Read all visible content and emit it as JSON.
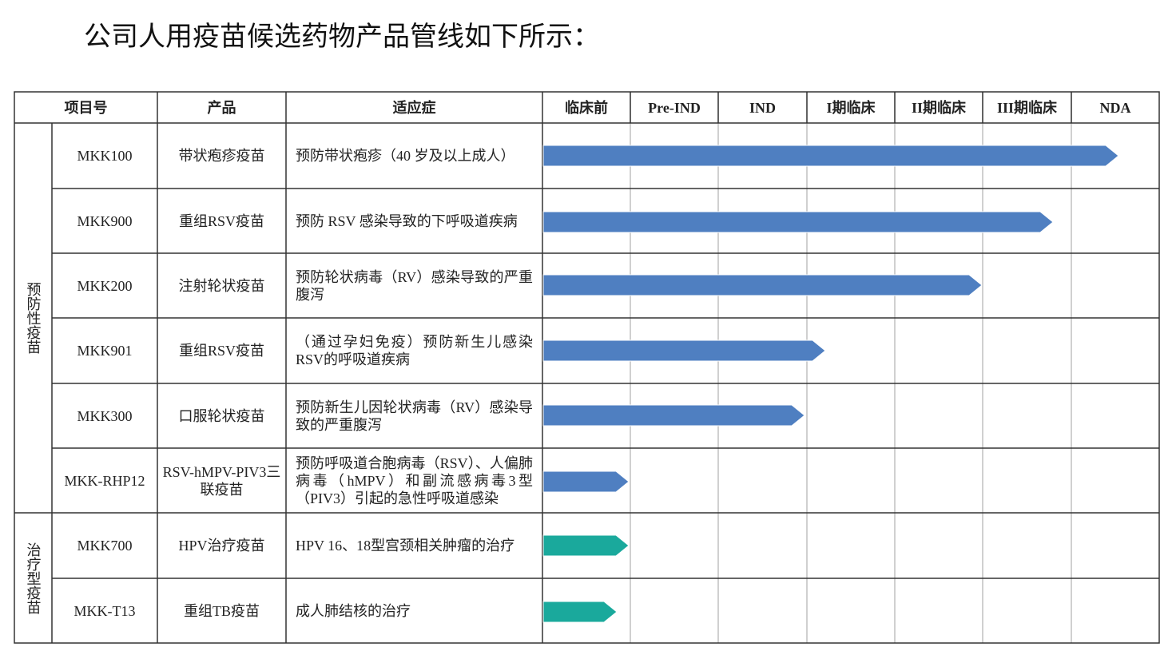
{
  "title": "公司人用疫苗候选药物产品管线如下所示：",
  "table": {
    "header": [
      "项目号",
      "产品",
      "适应症",
      "临床前",
      "Pre-IND",
      "IND",
      "I期临床",
      "II期临床",
      "III期临床",
      "NDA"
    ],
    "groups": [
      {
        "label": "预防性疫苗",
        "rows": [
          [
            "MKK100",
            "带状疱疹疫苗",
            "预防带状疱疹（40 岁及以上成人）"
          ],
          [
            "MKK900",
            "重组RSV疫苗",
            "预防 RSV 感染导致的下呼吸道疾病"
          ],
          [
            "MKK200",
            "注射轮状疫苗",
            "预防轮状病毒（RV）感染导致的严重腹泻"
          ],
          [
            "MKK901",
            "重组RSV疫苗",
            "（通过孕妇免疫）预防新生儿感染RSV的呼吸道疾病"
          ],
          [
            "MKK300",
            "口服轮状疫苗",
            "预防新生儿因轮状病毒（RV）感染导致的严重腹泻"
          ],
          [
            "MKK-RHP12",
            "RSV-hMPV-PIV3三联疫苗",
            "预防呼吸道合胞病毒（RSV）、人偏肺病毒（hMPV）和副流感病毒3型（PIV3）引起的急性呼吸道感染"
          ]
        ]
      },
      {
        "label": "治疗型疫苗",
        "rows": [
          [
            "MKK700",
            "HPV治疗疫苗",
            "HPV 16、18型宫颈相关肿瘤的治疗"
          ],
          [
            "MKK-T13",
            "重组TB疫苗",
            "成人肺结核的治疗"
          ]
        ]
      }
    ]
  }
}
